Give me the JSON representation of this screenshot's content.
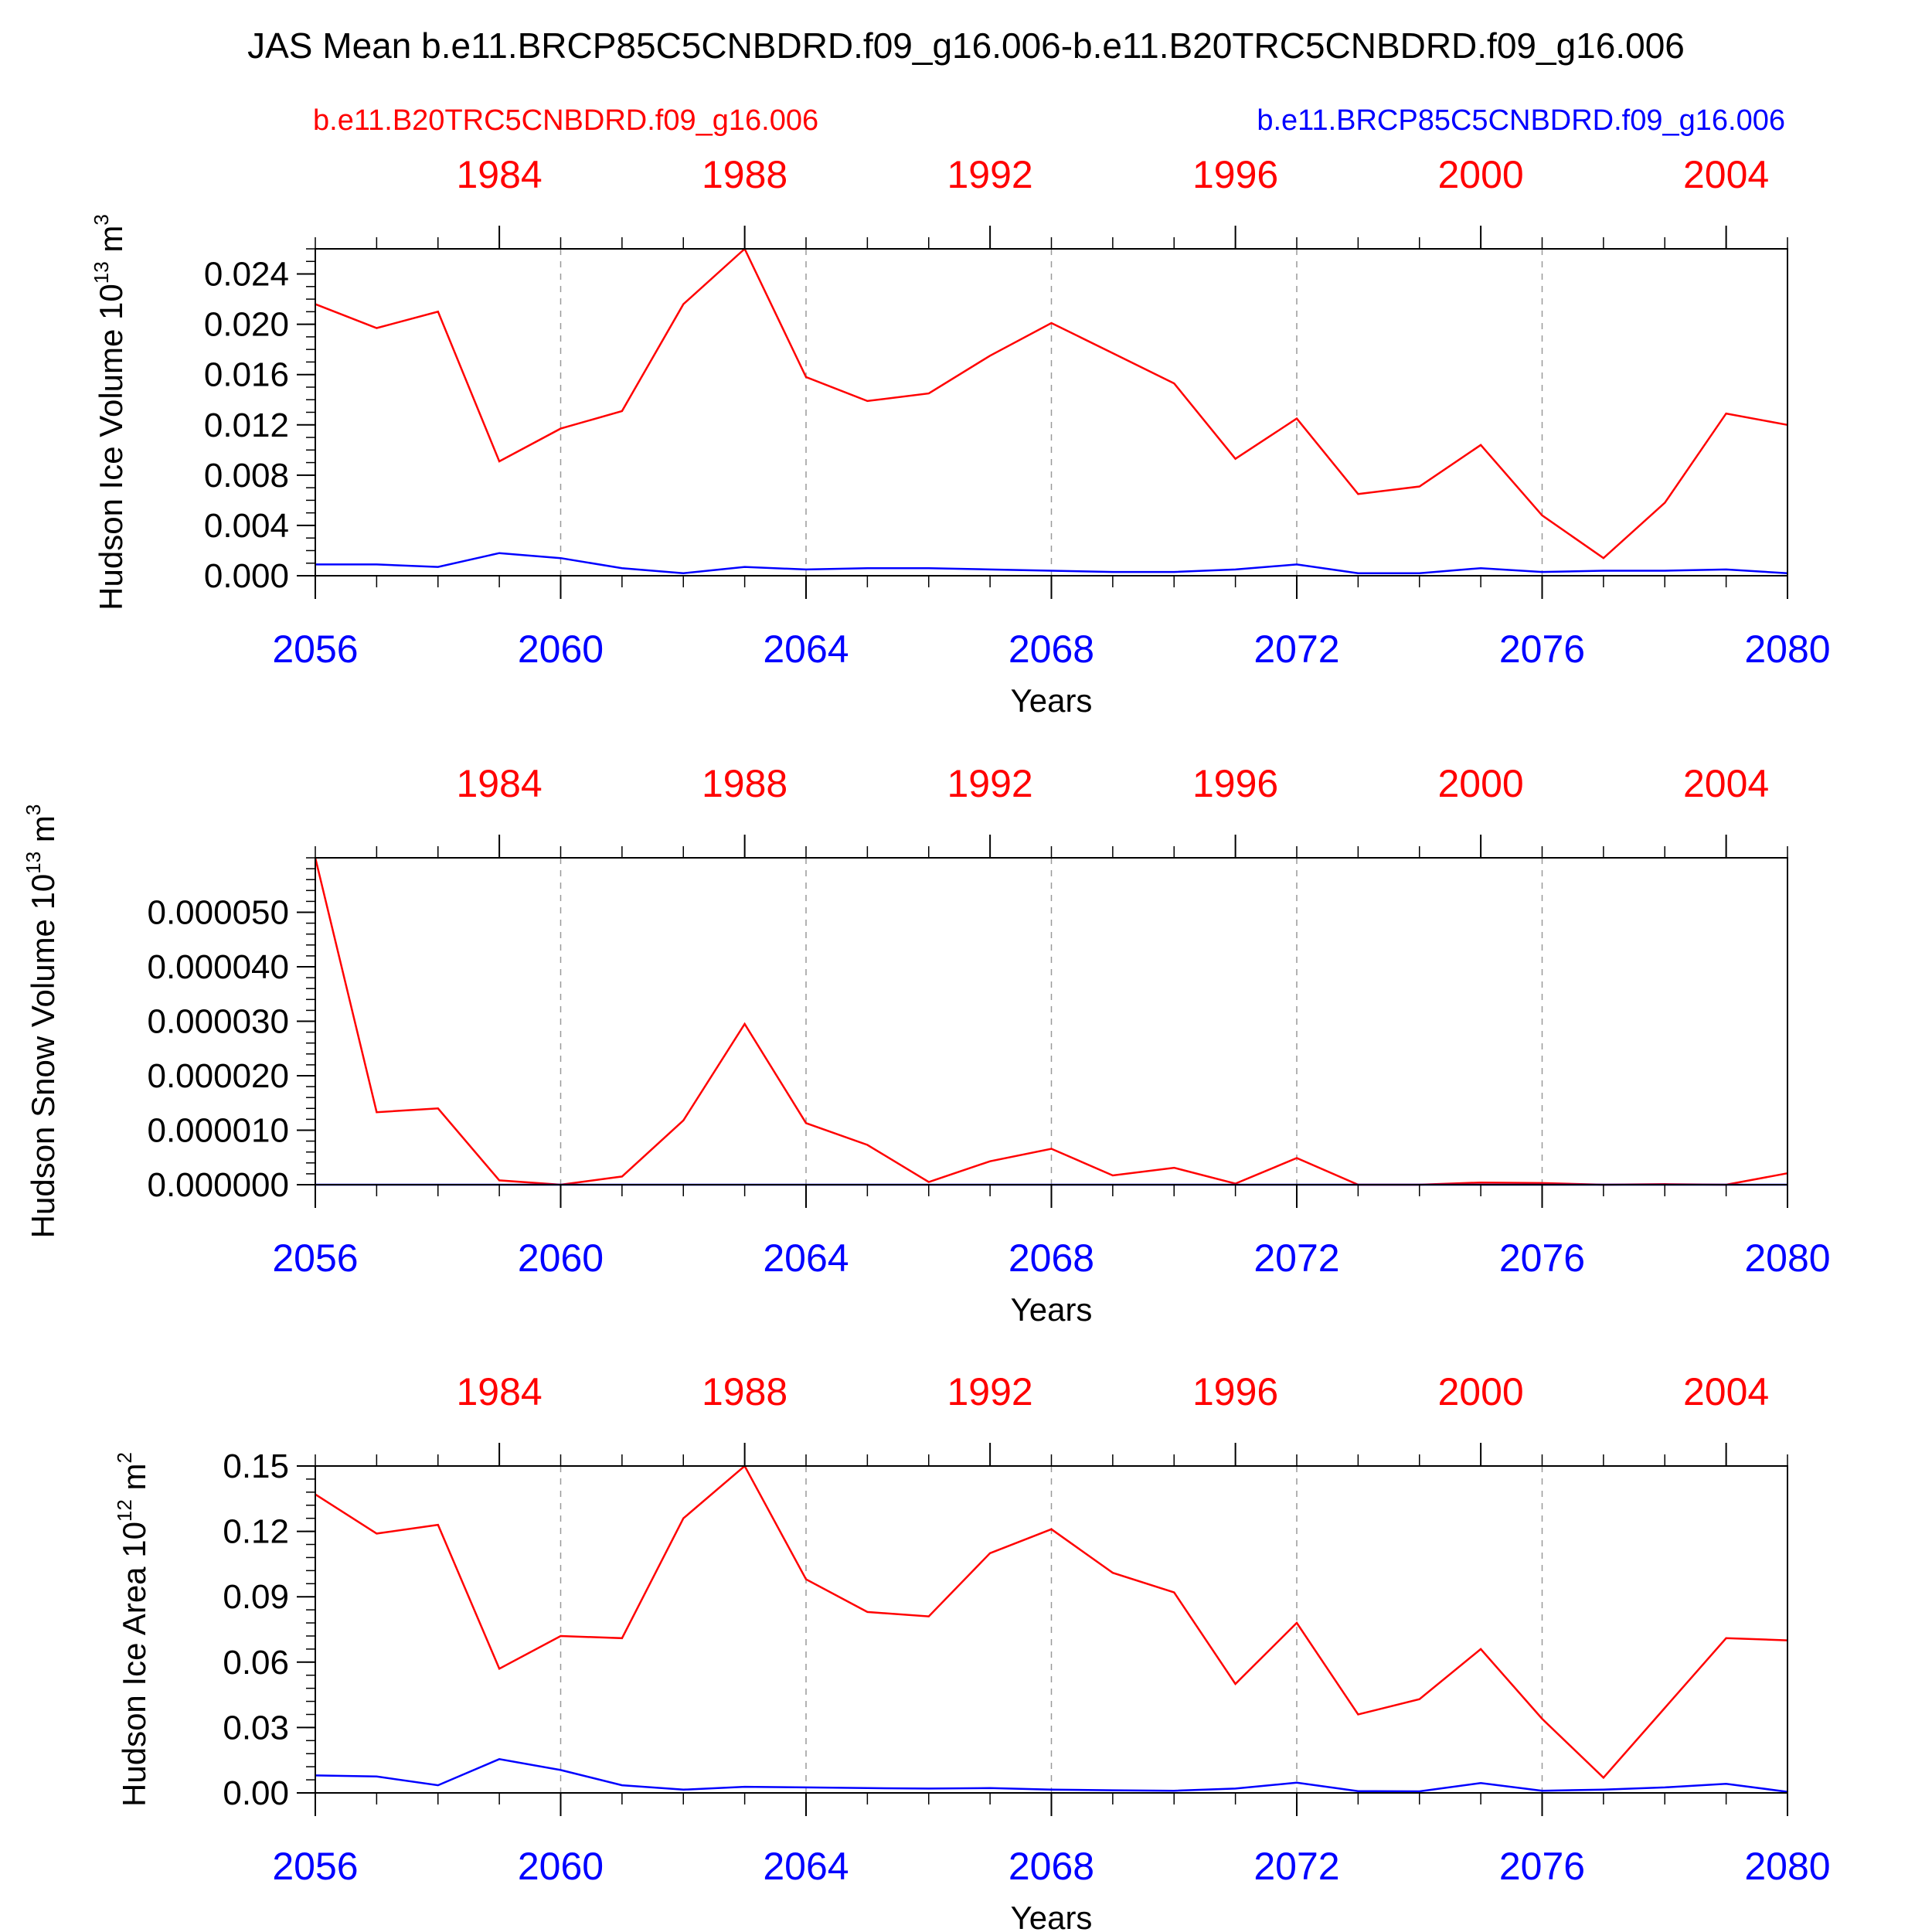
{
  "title": "JAS Mean b.e11.BRCP85C5CNBDRD.f09_g16.006-b.e11.B20TRC5CNBDRD.f09_g16.006",
  "legend": {
    "left_label": "b.e11.B20TRC5CNBDRD.f09_g16.006",
    "right_label": "b.e11.BRCP85C5CNBDRD.f09_g16.006"
  },
  "colors": {
    "control": "#ff0000",
    "scenario": "#0000ff",
    "axis": "#000000",
    "grid": "#999999"
  },
  "chart_data": [
    {
      "type": "line",
      "ylabel": "Hudson Ice Volume 10",
      "ylabel_exp": "13",
      "ylabel_unit": " m",
      "ylabel_unit_exp": "3",
      "xlabel": "Years",
      "xlim": [
        2056,
        2080
      ],
      "ylim": [
        0,
        0.026
      ],
      "yticks": [
        "0.000",
        "0.004",
        "0.008",
        "0.012",
        "0.016",
        "0.020",
        "0.024"
      ],
      "ytick_values": [
        0,
        0.004,
        0.008,
        0.012,
        0.016,
        0.02,
        0.024
      ],
      "yminor_step": 0.001,
      "bottom_ticks": [
        "2056",
        "2060",
        "2064",
        "2068",
        "2072",
        "2076",
        "2080"
      ],
      "top_ticks": [
        "1984",
        "1988",
        "1992",
        "1996",
        "2000",
        "2004"
      ],
      "x": [
        2056,
        2057,
        2058,
        2059,
        2060,
        2061,
        2062,
        2063,
        2064,
        2065,
        2066,
        2067,
        2068,
        2069,
        2070,
        2071,
        2072,
        2073,
        2074,
        2075,
        2076,
        2077,
        2078,
        2079,
        2080
      ],
      "series": [
        {
          "name": "b.e11.B20TRC5CNBDRD.f09_g16.006",
          "color": "#ff0000",
          "values": [
            0.0216,
            0.0197,
            0.021,
            0.0091,
            0.0117,
            0.0131,
            0.0216,
            0.026,
            0.0158,
            0.0139,
            0.0145,
            0.0175,
            0.0201,
            0.0177,
            0.0153,
            0.0093,
            0.0125,
            0.0065,
            0.0071,
            0.0104,
            0.0048,
            0.0014,
            0.0058,
            0.0129,
            0.012
          ]
        },
        {
          "name": "b.e11.BRCP85C5CNBDRD.f09_g16.006",
          "color": "#0000ff",
          "values": [
            0.0009,
            0.0009,
            0.0007,
            0.0018,
            0.0014,
            0.0006,
            0.0002,
            0.0007,
            0.0005,
            0.0006,
            0.0006,
            0.0005,
            0.0004,
            0.0003,
            0.0003,
            0.0005,
            0.0009,
            0.0002,
            0.0002,
            0.0006,
            0.0003,
            0.0004,
            0.0004,
            0.0005,
            0.0002
          ]
        }
      ]
    },
    {
      "type": "line",
      "ylabel": "Hudson Snow Volume 10",
      "ylabel_exp": "13",
      "ylabel_unit": " m",
      "ylabel_unit_exp": "3",
      "xlabel": "Years",
      "xlim": [
        2056,
        2080
      ],
      "ylim": [
        0,
        6e-05
      ],
      "yticks": [
        "0.000000",
        "0.000010",
        "0.000020",
        "0.000030",
        "0.000040",
        "0.000050"
      ],
      "ytick_values": [
        0,
        1e-05,
        2e-05,
        3e-05,
        4e-05,
        5e-05
      ],
      "yminor_step": 2e-06,
      "bottom_ticks": [
        "2056",
        "2060",
        "2064",
        "2068",
        "2072",
        "2076",
        "2080"
      ],
      "top_ticks": [
        "1984",
        "1988",
        "1992",
        "1996",
        "2000",
        "2004"
      ],
      "x": [
        2056,
        2057,
        2058,
        2059,
        2060,
        2061,
        2062,
        2063,
        2064,
        2065,
        2066,
        2067,
        2068,
        2069,
        2070,
        2071,
        2072,
        2073,
        2074,
        2075,
        2076,
        2077,
        2078,
        2079,
        2080
      ],
      "series": [
        {
          "name": "b.e11.B20TRC5CNBDRD.f09_g16.006",
          "color": "#ff0000",
          "values": [
            6e-05,
            1.33e-05,
            1.4e-05,
            8e-07,
            0.0,
            1.5e-06,
            1.18e-05,
            2.95e-05,
            1.13e-05,
            7.3e-06,
            5e-07,
            4.3e-06,
            6.6e-06,
            1.7e-06,
            3.1e-06,
            2e-07,
            4.9e-06,
            0.0,
            0.0,
            4e-07,
            3e-07,
            0.0,
            1e-07,
            0.0,
            2.1e-06
          ]
        },
        {
          "name": "b.e11.BRCP85C5CNBDRD.f09_g16.006",
          "color": "#0000ff",
          "values": [
            0,
            0,
            0,
            0,
            0,
            0,
            0,
            0,
            0,
            0,
            0,
            0,
            0,
            0,
            0,
            0,
            0,
            0,
            0,
            0,
            0,
            0,
            0,
            0,
            0
          ]
        }
      ]
    },
    {
      "type": "line",
      "ylabel": "Hudson Ice Area 10",
      "ylabel_exp": "12",
      "ylabel_unit": " m",
      "ylabel_unit_exp": "2",
      "xlabel": "Years",
      "xlim": [
        2056,
        2080
      ],
      "ylim": [
        0,
        0.15
      ],
      "yticks": [
        "0.00",
        "0.03",
        "0.06",
        "0.09",
        "0.12",
        "0.15"
      ],
      "ytick_values": [
        0,
        0.03,
        0.06,
        0.09,
        0.12,
        0.15
      ],
      "yminor_step": 0.006,
      "bottom_ticks": [
        "2056",
        "2060",
        "2064",
        "2068",
        "2072",
        "2076",
        "2080"
      ],
      "top_ticks": [
        "1984",
        "1988",
        "1992",
        "1996",
        "2000",
        "2004"
      ],
      "x": [
        2056,
        2057,
        2058,
        2059,
        2060,
        2061,
        2062,
        2063,
        2064,
        2065,
        2066,
        2067,
        2068,
        2069,
        2070,
        2071,
        2072,
        2073,
        2074,
        2075,
        2076,
        2077,
        2078,
        2079,
        2080
      ],
      "series": [
        {
          "name": "b.e11.B20TRC5CNBDRD.f09_g16.006",
          "color": "#ff0000",
          "values": [
            0.137,
            0.119,
            0.123,
            0.057,
            0.072,
            0.071,
            0.126,
            0.15,
            0.098,
            0.083,
            0.081,
            0.11,
            0.121,
            0.101,
            0.092,
            0.05,
            0.078,
            0.036,
            0.043,
            0.066,
            0.034,
            0.007,
            0.039,
            0.071,
            0.07
          ]
        },
        {
          "name": "b.e11.BRCP85C5CNBDRD.f09_g16.006",
          "color": "#0000ff",
          "values": [
            0.008,
            0.0075,
            0.0035,
            0.0155,
            0.0105,
            0.0035,
            0.0015,
            0.0028,
            0.0025,
            0.0022,
            0.002,
            0.0022,
            0.0015,
            0.0012,
            0.001,
            0.002,
            0.0047,
            0.0008,
            0.0007,
            0.0045,
            0.001,
            0.0015,
            0.0025,
            0.0042,
            0.0005
          ]
        }
      ]
    }
  ]
}
